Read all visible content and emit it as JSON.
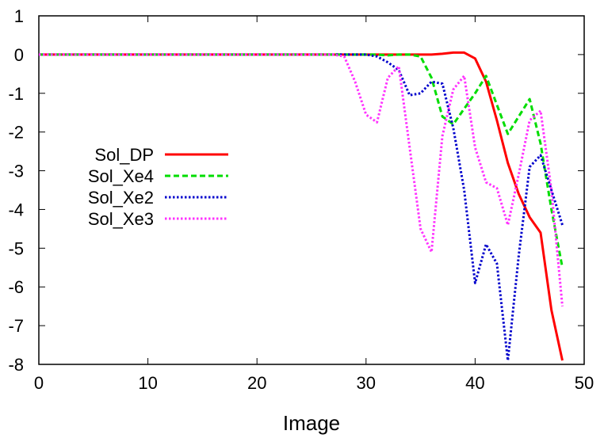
{
  "chart_data": {
    "type": "line",
    "title": "",
    "xlabel": "Image",
    "ylabel": "",
    "xlim": [
      0,
      50
    ],
    "ylim": [
      -8,
      1
    ],
    "xticks": [
      0,
      10,
      20,
      30,
      40,
      50
    ],
    "yticks": [
      1,
      0,
      -1,
      -2,
      -3,
      -4,
      -5,
      -6,
      -7,
      -8
    ],
    "grid": false,
    "legend_position": "left",
    "series": [
      {
        "name": "Sol_DP",
        "color": "#ff0000",
        "dash": "solid",
        "x": [
          0,
          1,
          2,
          3,
          4,
          5,
          6,
          7,
          8,
          9,
          10,
          11,
          12,
          13,
          14,
          15,
          16,
          17,
          18,
          19,
          20,
          21,
          22,
          23,
          24,
          25,
          26,
          27,
          28,
          29,
          30,
          31,
          32,
          33,
          34,
          35,
          36,
          37,
          38,
          39,
          40,
          41,
          42,
          43,
          44,
          45,
          46,
          47,
          48
        ],
        "y": [
          0,
          0,
          0,
          0,
          0,
          0,
          0,
          0,
          0,
          0,
          0,
          0,
          0,
          0,
          0,
          0,
          0,
          0,
          0,
          0,
          0,
          0,
          0,
          0,
          0,
          0,
          0,
          0,
          0,
          0,
          0,
          0,
          0,
          0,
          0,
          0,
          0,
          0.02,
          0.05,
          0.05,
          -0.1,
          -0.7,
          -1.7,
          -2.8,
          -3.6,
          -4.2,
          -4.6,
          -6.6,
          -7.9
        ]
      },
      {
        "name": "Sol_Xe4",
        "color": "#00dd00",
        "dash": "dashed",
        "x": [
          0,
          1,
          2,
          3,
          4,
          5,
          6,
          7,
          8,
          9,
          10,
          11,
          12,
          13,
          14,
          15,
          16,
          17,
          18,
          19,
          20,
          21,
          22,
          23,
          24,
          25,
          26,
          27,
          28,
          29,
          30,
          31,
          32,
          33,
          34,
          35,
          36,
          37,
          38,
          39,
          40,
          41,
          42,
          43,
          44,
          45,
          46,
          47,
          48
        ],
        "y": [
          0,
          0,
          0,
          0,
          0,
          0,
          0,
          0,
          0,
          0,
          0,
          0,
          0,
          0,
          0,
          0,
          0,
          0,
          0,
          0,
          0,
          0,
          0,
          0,
          0,
          0,
          0,
          0,
          0,
          0,
          0,
          0,
          -0.02,
          0,
          0,
          -0.05,
          -0.6,
          -1.6,
          -1.8,
          -1.4,
          -1.0,
          -0.55,
          -1.3,
          -2.05,
          -1.6,
          -1.15,
          -2.3,
          -4.0,
          -5.5
        ]
      },
      {
        "name": "Sol_Xe2",
        "color": "#0000cc",
        "dash": "dotted",
        "x": [
          0,
          1,
          2,
          3,
          4,
          5,
          6,
          7,
          8,
          9,
          10,
          11,
          12,
          13,
          14,
          15,
          16,
          17,
          18,
          19,
          20,
          21,
          22,
          23,
          24,
          25,
          26,
          27,
          28,
          29,
          30,
          31,
          32,
          33,
          34,
          35,
          36,
          37,
          38,
          39,
          40,
          41,
          42,
          43,
          44,
          45,
          46,
          47,
          48
        ],
        "y": [
          0,
          0,
          0,
          0,
          0,
          0,
          0,
          0,
          0,
          0,
          0,
          0,
          0,
          0,
          0,
          0,
          0,
          0,
          0,
          0,
          0,
          0,
          0,
          0,
          0,
          0,
          0,
          0,
          0,
          0,
          0,
          -0.05,
          -0.2,
          -0.4,
          -1.05,
          -1.0,
          -0.7,
          -0.75,
          -1.9,
          -3.5,
          -5.9,
          -4.9,
          -5.4,
          -7.9,
          -5.2,
          -2.9,
          -2.6,
          -3.5,
          -4.4
        ]
      },
      {
        "name": "Sol_Xe3",
        "color": "#ff33ff",
        "dash": "dotted",
        "x": [
          0,
          1,
          2,
          3,
          4,
          5,
          6,
          7,
          8,
          9,
          10,
          11,
          12,
          13,
          14,
          15,
          16,
          17,
          18,
          19,
          20,
          21,
          22,
          23,
          24,
          25,
          26,
          27,
          28,
          29,
          30,
          31,
          32,
          33,
          34,
          35,
          36,
          37,
          38,
          39,
          40,
          41,
          42,
          43,
          44,
          45,
          46,
          47,
          48
        ],
        "y": [
          0,
          0,
          0,
          0,
          0,
          0,
          0,
          0,
          0,
          0,
          0,
          0,
          0,
          0,
          0,
          0,
          0,
          0,
          0,
          0,
          0,
          0,
          0,
          0,
          0,
          0,
          0,
          0,
          -0.05,
          -0.7,
          -1.55,
          -1.75,
          -0.6,
          -0.3,
          -2.4,
          -4.5,
          -5.1,
          -2.1,
          -0.9,
          -0.55,
          -2.4,
          -3.3,
          -3.45,
          -4.4,
          -3.1,
          -1.7,
          -1.45,
          -3.5,
          -6.5
        ]
      }
    ]
  }
}
